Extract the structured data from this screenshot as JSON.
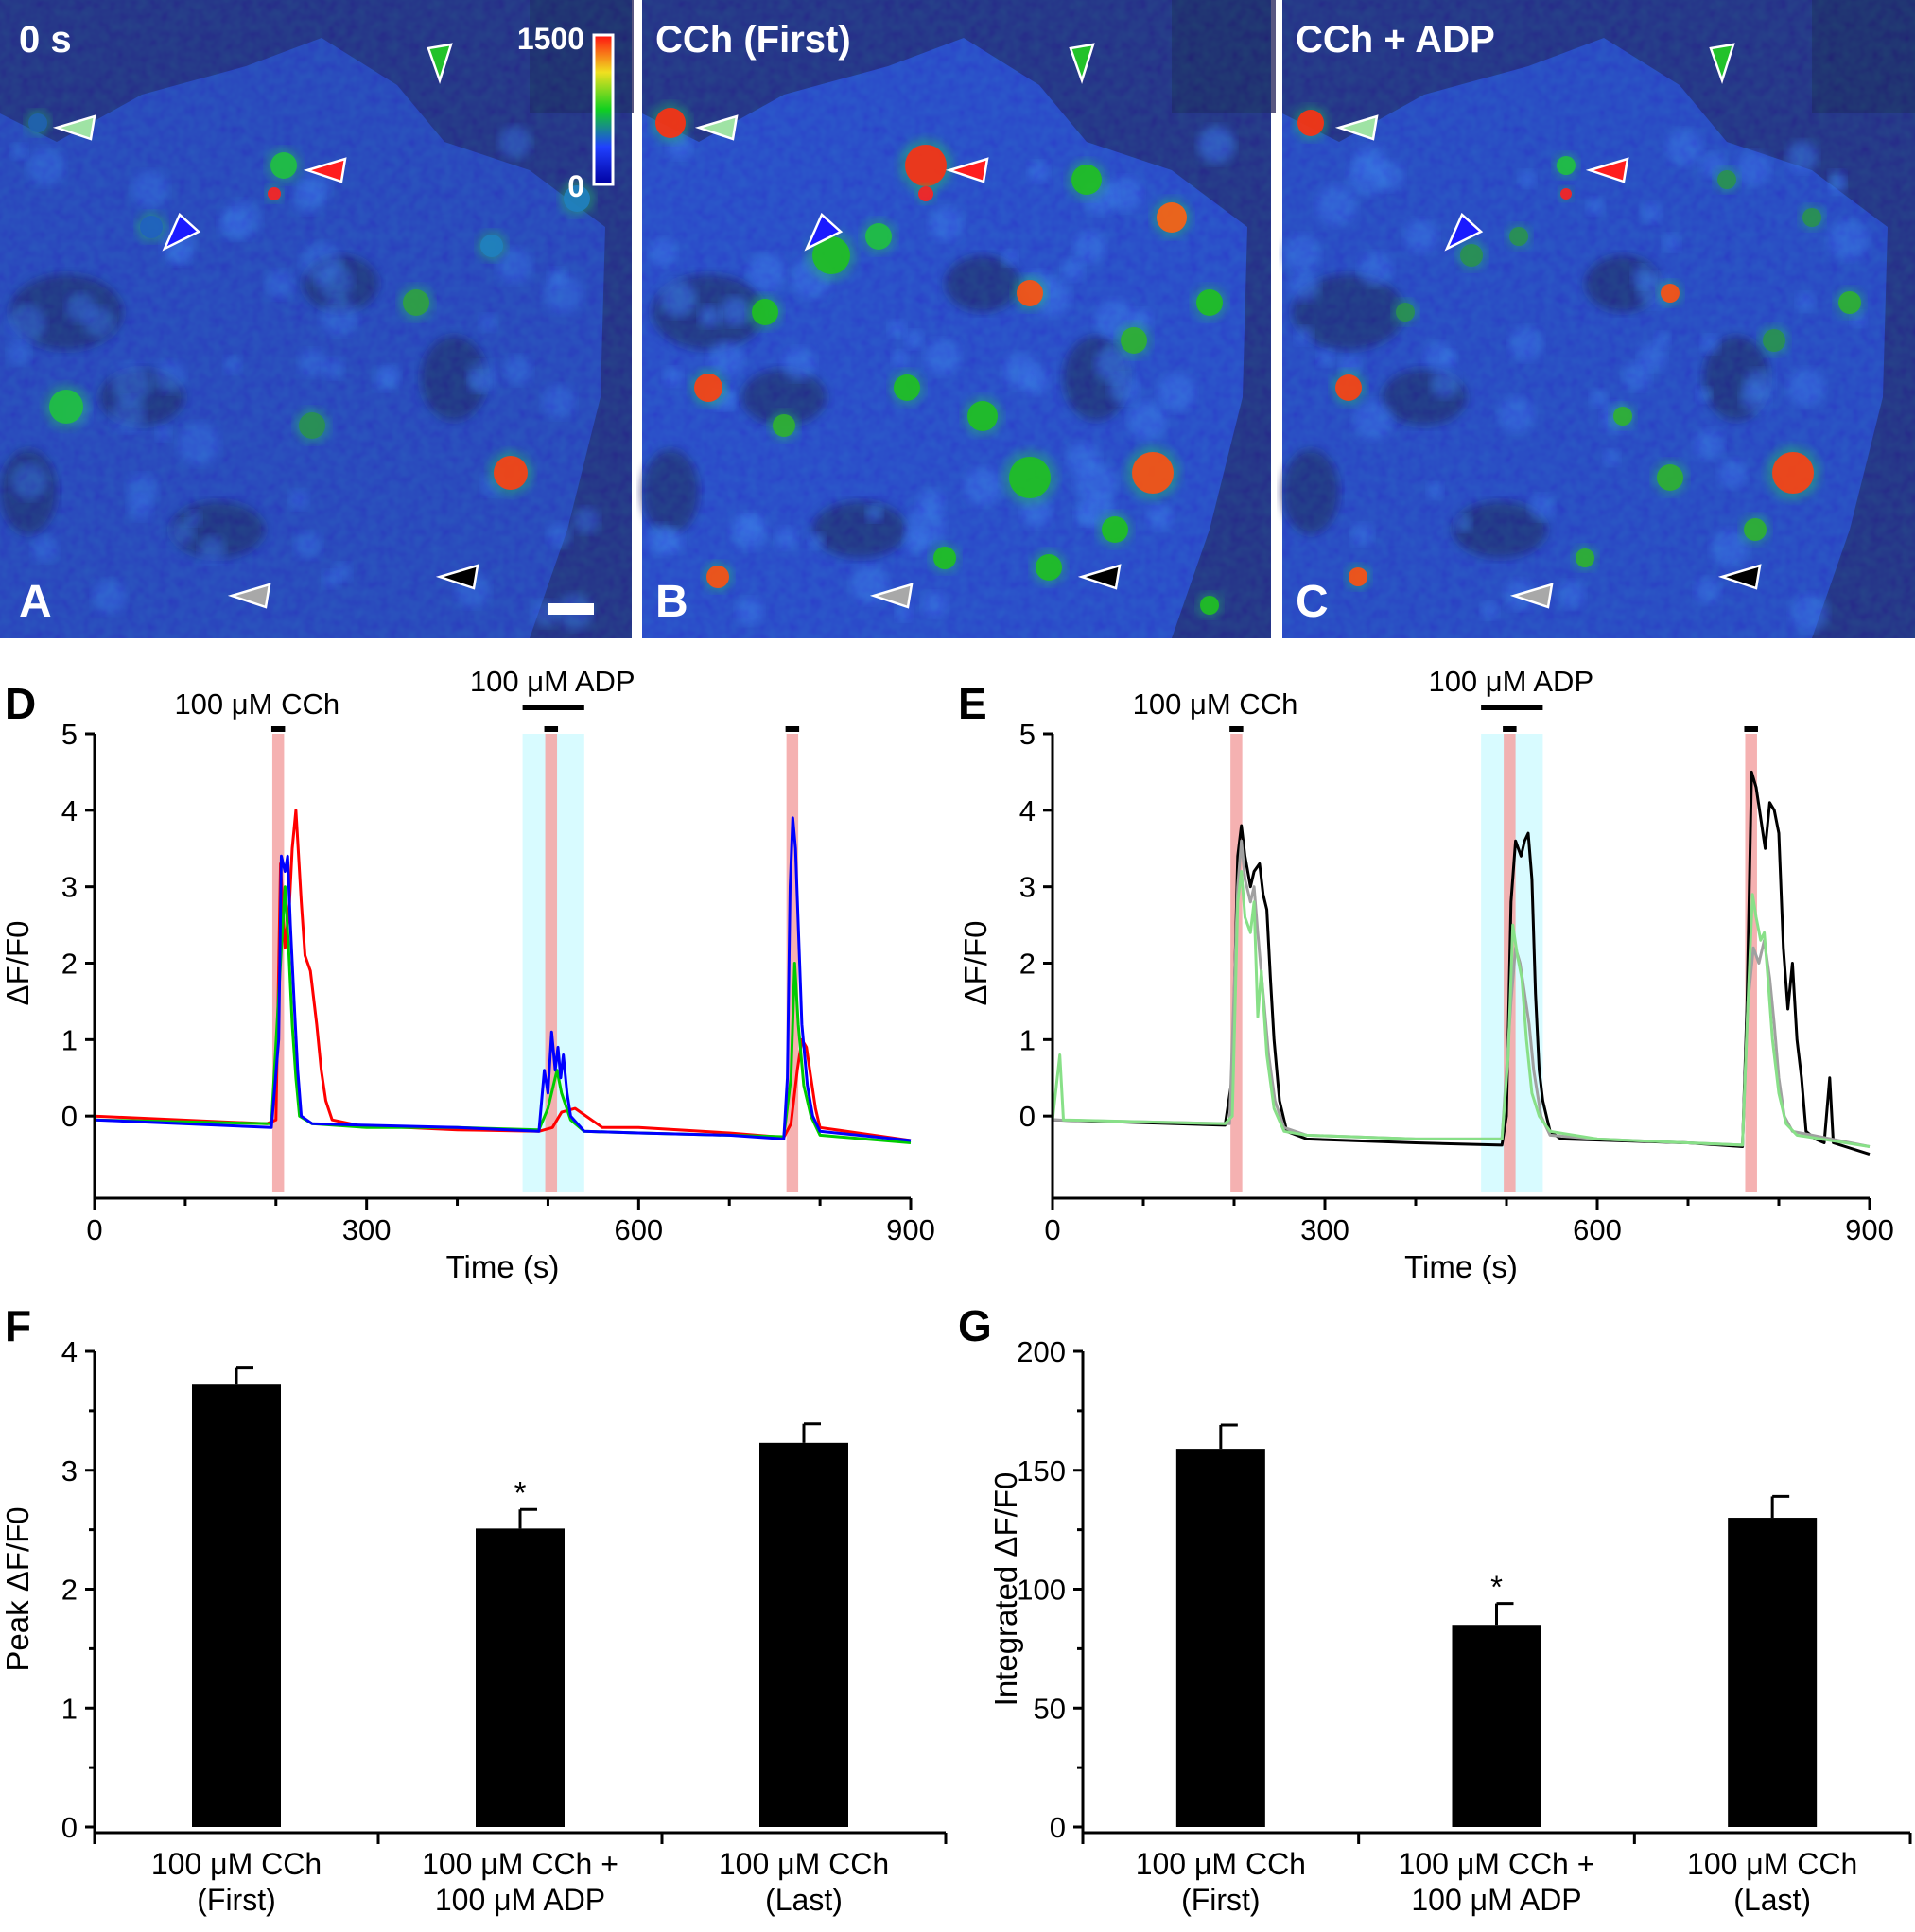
{
  "images": [
    {
      "panel": "A",
      "label": "0 s",
      "colorbar": {
        "max_label": "1500",
        "min_label": "0"
      },
      "brightness": 0.55
    },
    {
      "panel": "B",
      "label": "CCh (First)",
      "brightness": 1.0
    },
    {
      "panel": "C",
      "label": "CCh + ADP",
      "brightness": 0.8
    }
  ],
  "arrowheads": [
    {
      "name": "light-green",
      "color": "#9fe3a4"
    },
    {
      "name": "green",
      "color": "#22c22a"
    },
    {
      "name": "red",
      "color": "#ff1e1e"
    },
    {
      "name": "blue",
      "color": "#1a1aff"
    },
    {
      "name": "gray",
      "color": "#a8a8a8"
    },
    {
      "name": "black",
      "color": "#000000"
    }
  ],
  "chart_data": [
    {
      "panel": "D",
      "type": "line",
      "xlabel": "Time (s)",
      "ylabel": "ΔF/F0",
      "xlim": [
        0,
        900
      ],
      "ylim": [
        -1,
        5
      ],
      "xticks": [
        0,
        300,
        600,
        900
      ],
      "yticks": [
        0,
        1,
        2,
        3,
        4,
        5
      ],
      "annotations": [
        {
          "text": "100 μM CCh",
          "at": 200
        },
        {
          "text": "100 μM ADP",
          "at": 505
        }
      ],
      "cch_intervals": [
        [
          196,
          209
        ],
        [
          497,
          510
        ],
        [
          763,
          776
        ]
      ],
      "adp_interval": [
        472,
        540
      ],
      "series": [
        {
          "name": "red",
          "color": "#ff0000",
          "points": [
            [
              0,
              0
            ],
            [
              190,
              -0.1
            ],
            [
              200,
              -0.05
            ],
            [
              205,
              3.3
            ],
            [
              210,
              2.2
            ],
            [
              215,
              2.8
            ],
            [
              218,
              3.5
            ],
            [
              222,
              4.0
            ],
            [
              228,
              2.8
            ],
            [
              232,
              2.1
            ],
            [
              238,
              1.9
            ],
            [
              245,
              1.2
            ],
            [
              250,
              0.6
            ],
            [
              255,
              0.2
            ],
            [
              262,
              -0.05
            ],
            [
              290,
              -0.12
            ],
            [
              400,
              -0.18
            ],
            [
              490,
              -0.2
            ],
            [
              505,
              -0.15
            ],
            [
              515,
              0.05
            ],
            [
              530,
              0.1
            ],
            [
              560,
              -0.15
            ],
            [
              600,
              -0.15
            ],
            [
              700,
              -0.22
            ],
            [
              760,
              -0.28
            ],
            [
              768,
              -0.1
            ],
            [
              775,
              0.6
            ],
            [
              780,
              1.0
            ],
            [
              785,
              0.9
            ],
            [
              790,
              0.5
            ],
            [
              795,
              0.1
            ],
            [
              800,
              -0.15
            ],
            [
              900,
              -0.32
            ]
          ]
        },
        {
          "name": "green",
          "color": "#00cc00",
          "points": [
            [
              0,
              -0.05
            ],
            [
              195,
              -0.1
            ],
            [
              205,
              2.0
            ],
            [
              210,
              3.0
            ],
            [
              214,
              2.2
            ],
            [
              218,
              1.2
            ],
            [
              222,
              0.5
            ],
            [
              226,
              0.0
            ],
            [
              240,
              -0.1
            ],
            [
              300,
              -0.15
            ],
            [
              400,
              -0.15
            ],
            [
              490,
              -0.18
            ],
            [
              500,
              0.1
            ],
            [
              510,
              0.6
            ],
            [
              515,
              0.3
            ],
            [
              525,
              -0.05
            ],
            [
              540,
              -0.2
            ],
            [
              600,
              -0.22
            ],
            [
              700,
              -0.25
            ],
            [
              760,
              -0.27
            ],
            [
              768,
              0.5
            ],
            [
              772,
              2.0
            ],
            [
              776,
              1.2
            ],
            [
              782,
              0.4
            ],
            [
              790,
              0.0
            ],
            [
              800,
              -0.25
            ],
            [
              900,
              -0.35
            ]
          ]
        },
        {
          "name": "blue",
          "color": "#0000ff",
          "points": [
            [
              0,
              -0.05
            ],
            [
              195,
              -0.15
            ],
            [
              203,
              1.0
            ],
            [
              206,
              3.4
            ],
            [
              210,
              3.2
            ],
            [
              213,
              3.4
            ],
            [
              216,
              2.5
            ],
            [
              220,
              1.5
            ],
            [
              224,
              0.6
            ],
            [
              228,
              0.0
            ],
            [
              240,
              -0.1
            ],
            [
              300,
              -0.12
            ],
            [
              400,
              -0.15
            ],
            [
              490,
              -0.2
            ],
            [
              496,
              0.6
            ],
            [
              500,
              0.3
            ],
            [
              504,
              1.1
            ],
            [
              508,
              0.6
            ],
            [
              511,
              0.9
            ],
            [
              514,
              0.5
            ],
            [
              517,
              0.8
            ],
            [
              521,
              0.3
            ],
            [
              525,
              0.0
            ],
            [
              540,
              -0.2
            ],
            [
              600,
              -0.22
            ],
            [
              700,
              -0.25
            ],
            [
              760,
              -0.3
            ],
            [
              764,
              0.5
            ],
            [
              767,
              3.0
            ],
            [
              770,
              3.9
            ],
            [
              773,
              3.5
            ],
            [
              776,
              2.5
            ],
            [
              780,
              1.2
            ],
            [
              786,
              0.4
            ],
            [
              792,
              0.0
            ],
            [
              800,
              -0.2
            ],
            [
              900,
              -0.32
            ]
          ]
        }
      ]
    },
    {
      "panel": "E",
      "type": "line",
      "xlabel": "Time (s)",
      "ylabel": "ΔF/F0",
      "xlim": [
        0,
        900
      ],
      "ylim": [
        -1,
        5
      ],
      "xticks": [
        0,
        300,
        600,
        900
      ],
      "yticks": [
        0,
        1,
        2,
        3,
        4,
        5
      ],
      "annotations": [
        {
          "text": "100 μM CCh",
          "at": 200
        },
        {
          "text": "100 μM ADP",
          "at": 505
        }
      ],
      "cch_intervals": [
        [
          196,
          209
        ],
        [
          497,
          510
        ],
        [
          763,
          776
        ]
      ],
      "adp_interval": [
        472,
        540
      ],
      "series": [
        {
          "name": "black",
          "color": "#000000",
          "points": [
            [
              0,
              -0.05
            ],
            [
              190,
              -0.12
            ],
            [
              198,
              0.5
            ],
            [
              204,
              3.4
            ],
            [
              208,
              3.8
            ],
            [
              212,
              3.4
            ],
            [
              218,
              3.0
            ],
            [
              222,
              3.2
            ],
            [
              228,
              3.3
            ],
            [
              232,
              2.9
            ],
            [
              236,
              2.7
            ],
            [
              240,
              1.8
            ],
            [
              244,
              1.0
            ],
            [
              250,
              0.2
            ],
            [
              258,
              -0.2
            ],
            [
              280,
              -0.3
            ],
            [
              400,
              -0.35
            ],
            [
              495,
              -0.38
            ],
            [
              500,
              0.0
            ],
            [
              505,
              2.8
            ],
            [
              510,
              3.6
            ],
            [
              516,
              3.4
            ],
            [
              520,
              3.6
            ],
            [
              524,
              3.7
            ],
            [
              528,
              3.1
            ],
            [
              532,
              1.6
            ],
            [
              536,
              0.6
            ],
            [
              540,
              0.2
            ],
            [
              548,
              -0.2
            ],
            [
              560,
              -0.3
            ],
            [
              700,
              -0.35
            ],
            [
              760,
              -0.4
            ],
            [
              765,
              1.5
            ],
            [
              770,
              4.5
            ],
            [
              775,
              4.3
            ],
            [
              780,
              3.9
            ],
            [
              785,
              3.5
            ],
            [
              790,
              4.1
            ],
            [
              795,
              4.0
            ],
            [
              800,
              3.7
            ],
            [
              805,
              2.2
            ],
            [
              810,
              1.4
            ],
            [
              815,
              2.0
            ],
            [
              820,
              1.0
            ],
            [
              825,
              0.5
            ],
            [
              830,
              -0.2
            ],
            [
              840,
              -0.3
            ],
            [
              850,
              -0.35
            ],
            [
              856,
              0.5
            ],
            [
              860,
              -0.35
            ],
            [
              900,
              -0.5
            ]
          ]
        },
        {
          "name": "gray",
          "color": "#a0a0a0",
          "points": [
            [
              0,
              -0.05
            ],
            [
              195,
              -0.1
            ],
            [
              204,
              3.0
            ],
            [
              208,
              3.6
            ],
            [
              212,
              3.1
            ],
            [
              218,
              2.8
            ],
            [
              222,
              3.0
            ],
            [
              226,
              2.4
            ],
            [
              232,
              1.6
            ],
            [
              238,
              0.8
            ],
            [
              245,
              0.2
            ],
            [
              255,
              -0.15
            ],
            [
              280,
              -0.25
            ],
            [
              400,
              -0.3
            ],
            [
              495,
              -0.3
            ],
            [
              505,
              1.5
            ],
            [
              510,
              2.2
            ],
            [
              515,
              2.0
            ],
            [
              520,
              1.6
            ],
            [
              525,
              1.2
            ],
            [
              530,
              0.6
            ],
            [
              538,
              0.0
            ],
            [
              548,
              -0.25
            ],
            [
              600,
              -0.3
            ],
            [
              700,
              -0.35
            ],
            [
              760,
              -0.38
            ],
            [
              766,
              1.5
            ],
            [
              772,
              2.2
            ],
            [
              778,
              2.0
            ],
            [
              784,
              2.3
            ],
            [
              790,
              1.8
            ],
            [
              795,
              1.2
            ],
            [
              800,
              0.5
            ],
            [
              806,
              0.0
            ],
            [
              815,
              -0.2
            ],
            [
              900,
              -0.4
            ]
          ]
        },
        {
          "name": "light-green",
          "color": "#88e088",
          "points": [
            [
              0,
              -0.05
            ],
            [
              8,
              0.8
            ],
            [
              12,
              -0.05
            ],
            [
              190,
              -0.1
            ],
            [
              198,
              0.0
            ],
            [
              204,
              2.8
            ],
            [
              208,
              3.2
            ],
            [
              212,
              2.6
            ],
            [
              218,
              2.4
            ],
            [
              222,
              2.8
            ],
            [
              226,
              1.3
            ],
            [
              230,
              1.9
            ],
            [
              236,
              0.8
            ],
            [
              244,
              0.1
            ],
            [
              255,
              -0.2
            ],
            [
              280,
              -0.25
            ],
            [
              400,
              -0.3
            ],
            [
              495,
              -0.3
            ],
            [
              502,
              0.8
            ],
            [
              507,
              2.5
            ],
            [
              512,
              2.1
            ],
            [
              517,
              1.8
            ],
            [
              522,
              1.0
            ],
            [
              528,
              0.3
            ],
            [
              536,
              0.0
            ],
            [
              548,
              -0.2
            ],
            [
              600,
              -0.3
            ],
            [
              700,
              -0.35
            ],
            [
              760,
              -0.38
            ],
            [
              766,
              1.5
            ],
            [
              771,
              2.9
            ],
            [
              775,
              2.6
            ],
            [
              780,
              2.3
            ],
            [
              784,
              2.4
            ],
            [
              788,
              1.8
            ],
            [
              793,
              1.0
            ],
            [
              800,
              0.3
            ],
            [
              808,
              -0.1
            ],
            [
              820,
              -0.25
            ],
            [
              900,
              -0.4
            ]
          ]
        }
      ]
    },
    {
      "panel": "F",
      "type": "bar",
      "ylabel": "Peak ΔF/F0",
      "ylim": [
        0,
        4
      ],
      "yticks": [
        0,
        1,
        2,
        3,
        4
      ],
      "categories": [
        [
          "100 μM CCh",
          "(First)"
        ],
        [
          "100 μM CCh +",
          "100 μM ADP"
        ],
        [
          "100 μM CCh",
          "(Last)"
        ]
      ],
      "values": [
        3.72,
        2.51,
        3.23
      ],
      "errors": [
        0.14,
        0.16,
        0.16
      ],
      "significance": [
        "",
        "*",
        ""
      ]
    },
    {
      "panel": "G",
      "type": "bar",
      "ylabel": "Integrated ΔF/F0",
      "ylim": [
        0,
        200
      ],
      "yticks": [
        0,
        50,
        100,
        150,
        200
      ],
      "categories": [
        [
          "100 μM CCh",
          "(First)"
        ],
        [
          "100 μM CCh +",
          "100 μM ADP"
        ],
        [
          "100 μM CCh",
          "(Last)"
        ]
      ],
      "values": [
        159,
        85,
        130
      ],
      "errors": [
        10,
        9,
        9
      ],
      "significance": [
        "",
        "*",
        ""
      ]
    }
  ]
}
